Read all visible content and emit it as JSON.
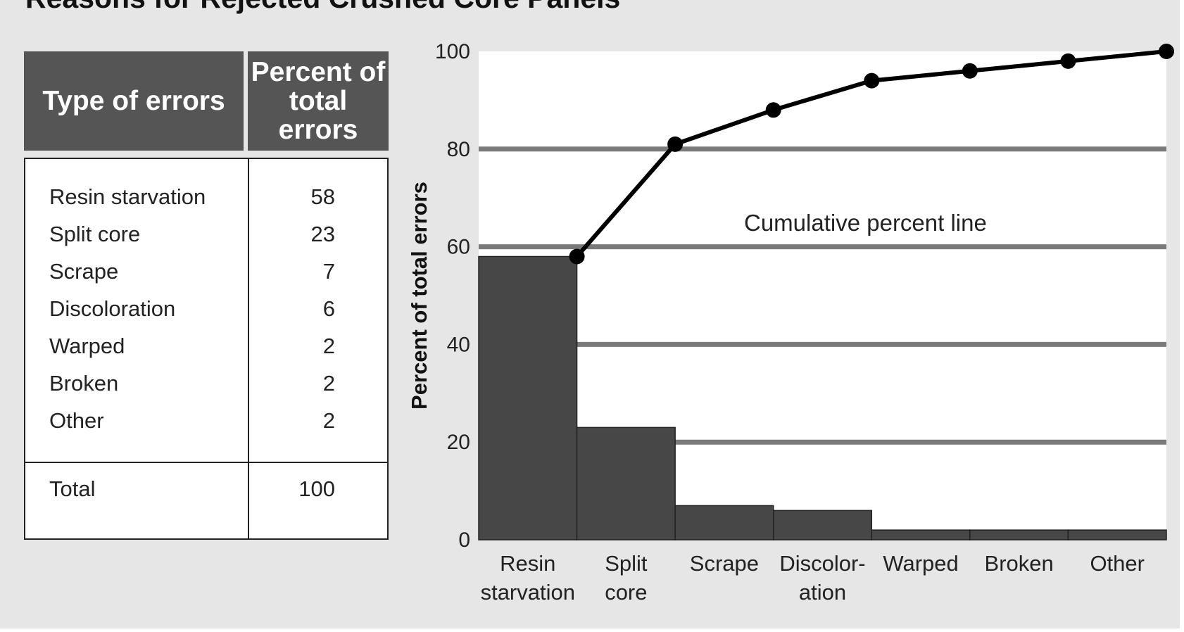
{
  "title": "Reasons for Rejected Crushed Core Panels",
  "table": {
    "headers": [
      "Type of errors",
      "Percent of total errors"
    ],
    "rows": [
      {
        "name": "Resin starvation",
        "value": "58"
      },
      {
        "name": "Split core",
        "value": "23"
      },
      {
        "name": "Scrape",
        "value": "7"
      },
      {
        "name": "Discoloration",
        "value": "6"
      },
      {
        "name": "Warped",
        "value": "2"
      },
      {
        "name": "Broken",
        "value": "2"
      },
      {
        "name": "Other",
        "value": "2"
      }
    ],
    "total": {
      "name": "Total",
      "value": "100"
    }
  },
  "colors": {
    "bar": "#474747",
    "line": "#000000",
    "grid": "#7a7a7a",
    "header": "#555555",
    "panel": "#e6e6e6"
  },
  "chart_data": {
    "type": "bar",
    "categories": [
      [
        "Resin",
        "starvation"
      ],
      [
        "Split",
        "core"
      ],
      [
        "Scrape"
      ],
      [
        "Discolor-",
        "ation"
      ],
      [
        "Warped"
      ],
      [
        "Broken"
      ],
      [
        "Other"
      ]
    ],
    "values": [
      58,
      23,
      7,
      6,
      2,
      2,
      2
    ],
    "cumulative": [
      58,
      81,
      88,
      94,
      96,
      98,
      100
    ],
    "ylabel": "Percent of total errors",
    "ylim": [
      0,
      100
    ],
    "yticks": [
      0,
      20,
      40,
      60,
      80,
      100
    ],
    "gridlines": [
      20,
      40,
      60,
      80
    ],
    "annotation": "Cumulative percent line"
  }
}
